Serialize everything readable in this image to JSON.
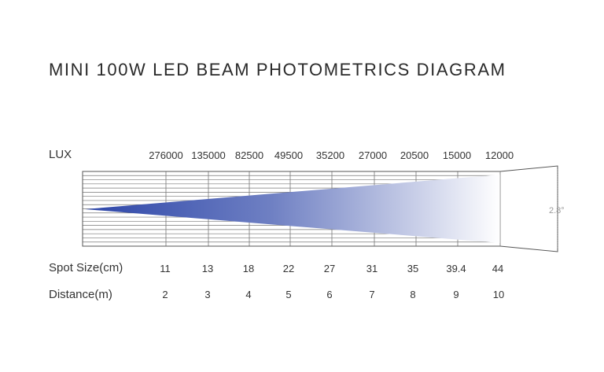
{
  "title": "MINI 100W LED BEAM PHOTOMETRICS DIAGRAM",
  "lux_label": "LUX",
  "spot_label": "Spot Size(cm)",
  "distance_label": "Distance(m)",
  "angle_label": "2.8°",
  "beam_color": "#2c45a8",
  "lux_values": [
    "276000",
    "135000",
    "82500",
    "49500",
    "35200",
    "27000",
    "20500",
    "15000",
    "12000"
  ],
  "spot_sizes": [
    "11",
    "13",
    "18",
    "22",
    "27",
    "31",
    "35",
    "39.4",
    "44"
  ],
  "distances": [
    "2",
    "3",
    "4",
    "5",
    "6",
    "7",
    "8",
    "9",
    "10"
  ]
}
